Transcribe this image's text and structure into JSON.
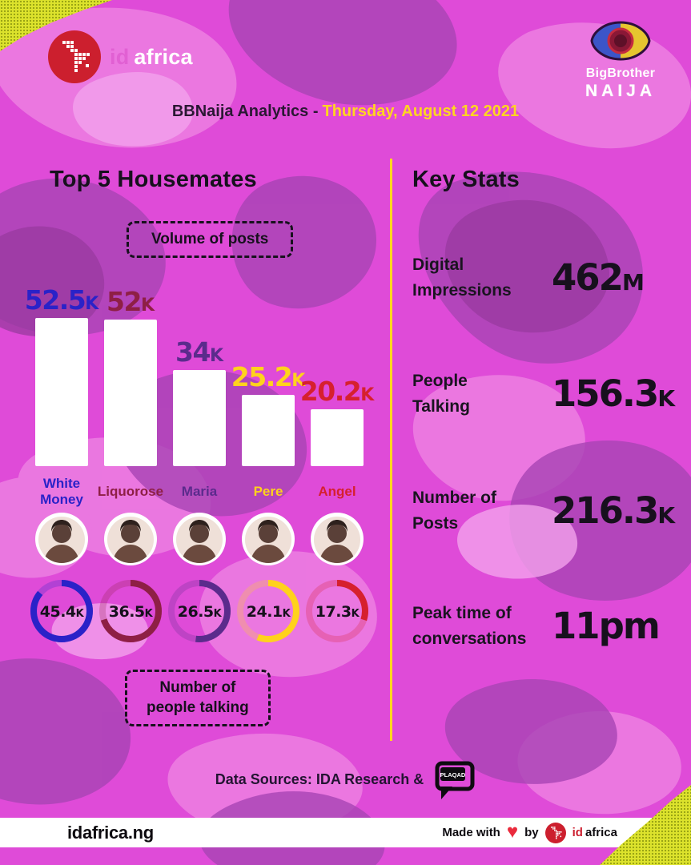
{
  "meta": {
    "title_prefix": "BBNaija Analytics -",
    "title_date": "Thursday, August 12 2021"
  },
  "brand": {
    "id": "id",
    "africa": "africa"
  },
  "bbn": {
    "top": "BigBrother",
    "bottom": "NAIJA"
  },
  "left": {
    "heading": "Top 5 Housemates",
    "volume_box": "Volume of posts",
    "talking_box_line1": "Number of",
    "talking_box_line2": "people talking",
    "housemates": [
      {
        "full_name": "White Money",
        "name_line1": "White",
        "name_line2": "Money",
        "posts": "52.5",
        "posts_suffix": "K",
        "posts_value": 52.5,
        "talking": "45.4",
        "talking_suffix": "K",
        "talking_value": 45.4,
        "ring_pct": 86,
        "color": "#2A22C8"
      },
      {
        "full_name": "Liquorose",
        "name_line1": "Liquorose",
        "name_line2": "",
        "posts": "52",
        "posts_suffix": "K",
        "posts_value": 52,
        "talking": "36.5",
        "talking_suffix": "K",
        "talking_value": 36.5,
        "ring_pct": 70,
        "color": "#8E1F45"
      },
      {
        "full_name": "Maria",
        "name_line1": "Maria",
        "name_line2": "",
        "posts": "34",
        "posts_suffix": "K",
        "posts_value": 34,
        "talking": "26.5",
        "talking_suffix": "K",
        "talking_value": 26.5,
        "ring_pct": 52,
        "color": "#5B2B8C"
      },
      {
        "full_name": "Pere",
        "name_line1": "Pere",
        "name_line2": "",
        "posts": "25.2",
        "posts_suffix": "K",
        "posts_value": 25.2,
        "talking": "24.1",
        "talking_suffix": "K",
        "talking_value": 24.1,
        "ring_pct": 56,
        "color": "#FFD21C"
      },
      {
        "full_name": "Angel",
        "name_line1": "Angel",
        "name_line2": "",
        "posts": "20.2",
        "posts_suffix": "K",
        "posts_value": 20.2,
        "talking": "17.3",
        "talking_suffix": "K",
        "talking_value": 17.3,
        "ring_pct": 30,
        "color": "#D6202E"
      }
    ]
  },
  "right": {
    "heading": "Key Stats",
    "stats": [
      {
        "label_line1": "Digital",
        "label_line2": "Impressions",
        "value": "462",
        "suffix": "M"
      },
      {
        "label_line1": "People",
        "label_line2": "Talking",
        "value": "156.3",
        "suffix": "K"
      },
      {
        "label_line1": "Number of",
        "label_line2": "Posts",
        "value": "216.3",
        "suffix": "K"
      },
      {
        "label_line1": "Peak time of",
        "label_line2": "conversations",
        "value": "11pm",
        "suffix": ""
      }
    ]
  },
  "sources": {
    "text": "Data Sources: IDA Research &",
    "logo_text": "PLAQAD"
  },
  "footer": {
    "site": "idafrica.ng",
    "made_with": "Made with",
    "heart": "♥",
    "by": "by",
    "brand_id": "id",
    "brand_africa": "africa"
  },
  "colors": {
    "background": "#DF4BD8",
    "camo_dark": "#A843B4",
    "camo_deep": "#98399F",
    "camo_light": "#EC7CE1",
    "camo_lighter": "#F3A1EC",
    "accent_yellow": "#FFD61F",
    "title_dark": "#2A1733",
    "text_black": "#16101C",
    "bar_white": "#FFFFFF",
    "logo_red": "#CC2030",
    "heart_red": "#EA2A3C",
    "corner_yellow": "#DCE22C"
  },
  "chart_data": [
    {
      "type": "bar",
      "title": "Top 5 Housemates — Volume of posts",
      "categories": [
        "White Money",
        "Liquorose",
        "Maria",
        "Pere",
        "Angel"
      ],
      "values": [
        52500,
        52000,
        34000,
        25200,
        20200
      ],
      "value_labels": [
        "52.5K",
        "52K",
        "34K",
        "25.2K",
        "20.2K"
      ],
      "label_colors": [
        "#2A22C8",
        "#8E1F45",
        "#5B2B8C",
        "#FFD21C",
        "#D6202E"
      ],
      "bar_color": "#FFFFFF",
      "xlabel": "",
      "ylabel": "Volume of posts",
      "ylim": [
        0,
        52500
      ],
      "grid": false,
      "legend": "none"
    },
    {
      "type": "pie",
      "title": "Number of people talking (ring gauges)",
      "categories": [
        "White Money",
        "Liquorose",
        "Maria",
        "Pere",
        "Angel"
      ],
      "values": [
        45400,
        36500,
        26500,
        24100,
        17300
      ],
      "value_labels": [
        "45.4K",
        "36.5K",
        "26.5K",
        "24.1K",
        "17.3K"
      ],
      "ring_fill_percent": [
        86,
        70,
        52,
        56,
        30
      ],
      "colors": [
        "#2A22C8",
        "#8E1F45",
        "#5B2B8C",
        "#FFD21C",
        "#D6202E"
      ]
    },
    {
      "type": "table",
      "title": "Key Stats",
      "rows": [
        [
          "Digital Impressions",
          "462M"
        ],
        [
          "People Talking",
          "156.3K"
        ],
        [
          "Number of Posts",
          "216.3K"
        ],
        [
          "Peak time of conversations",
          "11pm"
        ]
      ]
    }
  ]
}
